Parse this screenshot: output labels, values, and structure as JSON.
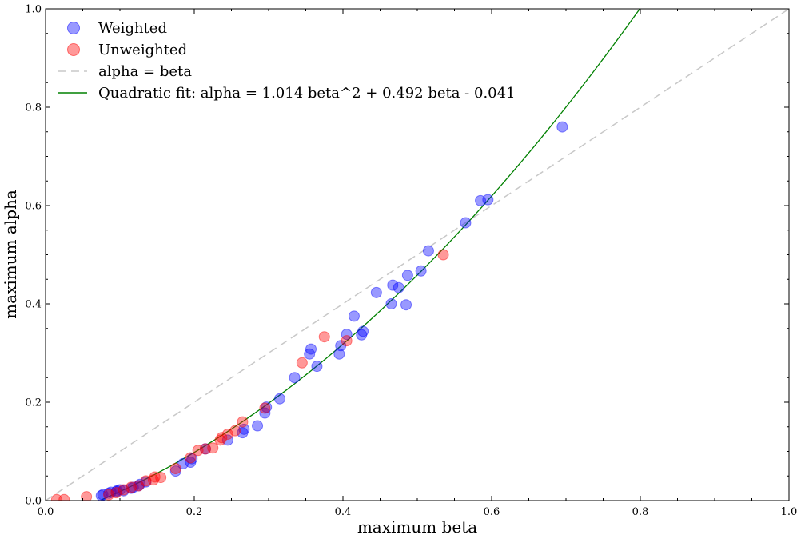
{
  "chart_data": {
    "type": "scatter",
    "xlabel": "maximum beta",
    "ylabel": "maximum alpha",
    "xlim": [
      0,
      1
    ],
    "ylim": [
      0,
      1
    ],
    "xticks": [
      "0.0",
      "0.2",
      "0.4",
      "0.6",
      "0.8",
      "1.0"
    ],
    "yticks": [
      "0.0",
      "0.2",
      "0.4",
      "0.6",
      "0.8",
      "1.0"
    ],
    "grid": false,
    "legend_position": "top-left",
    "series": [
      {
        "name": "Weighted",
        "kind": "scatter",
        "color": "#0000ff",
        "points": [
          [
            0.075,
            0.01
          ],
          [
            0.077,
            0.012
          ],
          [
            0.085,
            0.015
          ],
          [
            0.088,
            0.017
          ],
          [
            0.095,
            0.018
          ],
          [
            0.096,
            0.02
          ],
          [
            0.1,
            0.022
          ],
          [
            0.105,
            0.02
          ],
          [
            0.115,
            0.025
          ],
          [
            0.118,
            0.027
          ],
          [
            0.125,
            0.03
          ],
          [
            0.127,
            0.033
          ],
          [
            0.135,
            0.038
          ],
          [
            0.175,
            0.06
          ],
          [
            0.185,
            0.075
          ],
          [
            0.195,
            0.078
          ],
          [
            0.197,
            0.085
          ],
          [
            0.215,
            0.105
          ],
          [
            0.245,
            0.123
          ],
          [
            0.265,
            0.138
          ],
          [
            0.267,
            0.145
          ],
          [
            0.285,
            0.152
          ],
          [
            0.295,
            0.178
          ],
          [
            0.297,
            0.19
          ],
          [
            0.315,
            0.207
          ],
          [
            0.335,
            0.25
          ],
          [
            0.355,
            0.298
          ],
          [
            0.357,
            0.308
          ],
          [
            0.365,
            0.273
          ],
          [
            0.395,
            0.298
          ],
          [
            0.397,
            0.315
          ],
          [
            0.405,
            0.338
          ],
          [
            0.415,
            0.375
          ],
          [
            0.425,
            0.337
          ],
          [
            0.427,
            0.344
          ],
          [
            0.445,
            0.423
          ],
          [
            0.465,
            0.4
          ],
          [
            0.467,
            0.438
          ],
          [
            0.475,
            0.433
          ],
          [
            0.485,
            0.398
          ],
          [
            0.487,
            0.458
          ],
          [
            0.505,
            0.467
          ],
          [
            0.515,
            0.508
          ],
          [
            0.565,
            0.565
          ],
          [
            0.585,
            0.61
          ],
          [
            0.595,
            0.612
          ],
          [
            0.695,
            0.76
          ]
        ]
      },
      {
        "name": "Unweighted",
        "kind": "scatter",
        "color": "#ff0000",
        "points": [
          [
            0.015,
            0.002
          ],
          [
            0.025,
            0.002
          ],
          [
            0.055,
            0.008
          ],
          [
            0.085,
            0.012
          ],
          [
            0.095,
            0.016
          ],
          [
            0.105,
            0.022
          ],
          [
            0.115,
            0.027
          ],
          [
            0.125,
            0.03
          ],
          [
            0.135,
            0.04
          ],
          [
            0.145,
            0.042
          ],
          [
            0.147,
            0.048
          ],
          [
            0.155,
            0.047
          ],
          [
            0.175,
            0.065
          ],
          [
            0.195,
            0.087
          ],
          [
            0.205,
            0.102
          ],
          [
            0.215,
            0.105
          ],
          [
            0.225,
            0.107
          ],
          [
            0.235,
            0.123
          ],
          [
            0.237,
            0.128
          ],
          [
            0.245,
            0.135
          ],
          [
            0.255,
            0.142
          ],
          [
            0.265,
            0.16
          ],
          [
            0.295,
            0.188
          ],
          [
            0.345,
            0.28
          ],
          [
            0.375,
            0.333
          ],
          [
            0.405,
            0.325
          ],
          [
            0.535,
            0.5
          ]
        ]
      },
      {
        "name": "alpha = beta",
        "kind": "line",
        "style": "dashed",
        "color": "#c8c8c8",
        "equation": "y = x"
      },
      {
        "name": "Quadratic fit: alpha = 1.014 beta^2 + 0.492 beta - 0.041",
        "kind": "line",
        "style": "solid",
        "color": "#008000",
        "coefficients": {
          "a": 1.014,
          "b": 0.492,
          "c": -0.041
        },
        "x_start": 0.075
      }
    ]
  }
}
